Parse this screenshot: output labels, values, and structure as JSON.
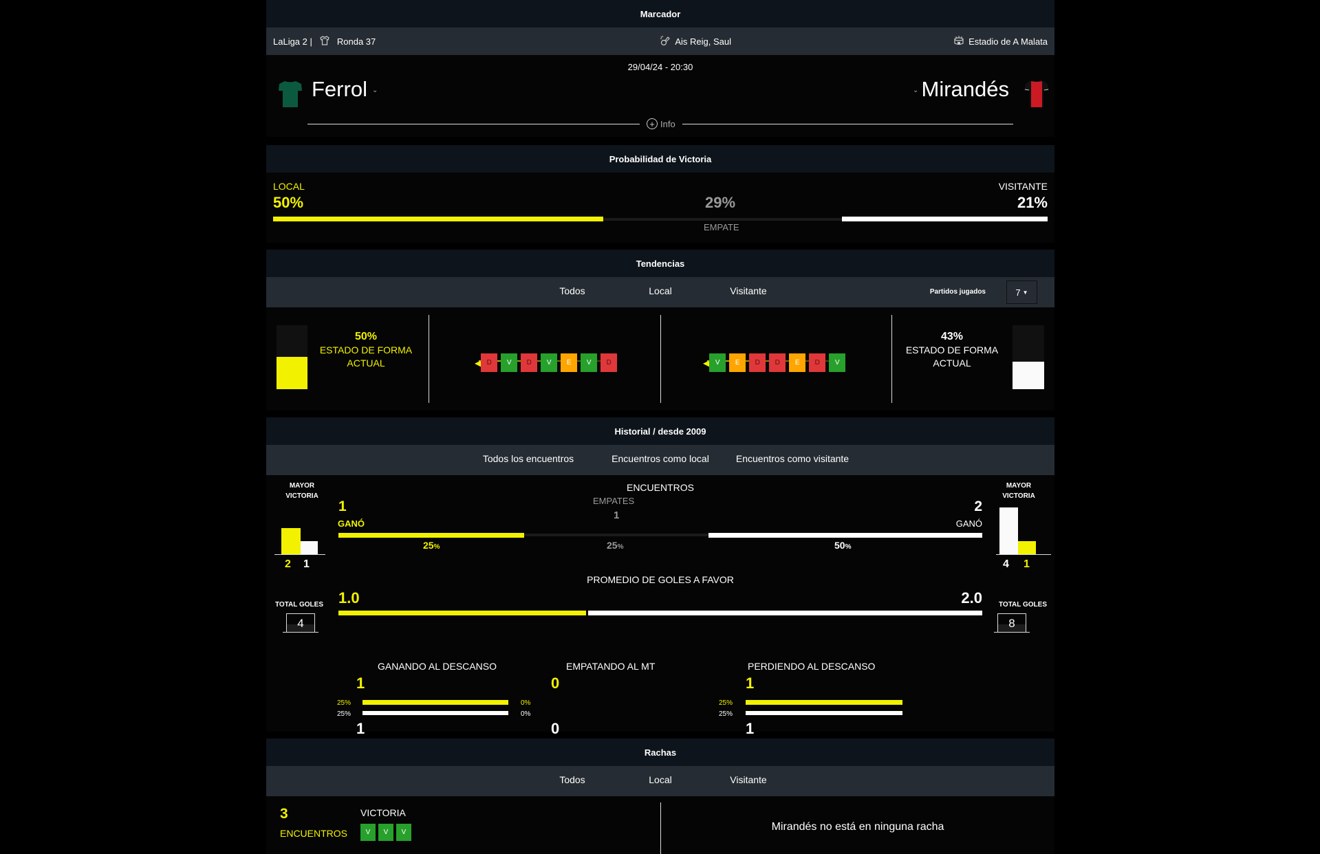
{
  "marcador": {
    "title": "Marcador",
    "competition": "LaLiga 2 |",
    "round": "Ronda 37",
    "referee": "Ais Reig, Saul",
    "stadium": "Estadio de A Malata",
    "datetime": "29/04/24 - 20:30",
    "home_team": "Ferrol",
    "away_team": "Mirandés",
    "info_label": "Info",
    "home_jersey_color": "#0b5a40",
    "away_jersey_color": "#cc1a24"
  },
  "probabilidad": {
    "title": "Probabilidad de Victoria",
    "local_label": "LOCAL",
    "local_pct": "50%",
    "draw_pct": "29%",
    "draw_label": "EMPATE",
    "visitor_label": "VISITANTE",
    "visitor_pct": "21%",
    "values": {
      "local": 50,
      "draw": 29,
      "visitor": 21
    }
  },
  "tendencias": {
    "title": "Tendencias",
    "tabs": [
      "Todos",
      "Local",
      "Visitante"
    ],
    "active_tab": "Todos",
    "played_label": "Partidos jugados",
    "played_value": "7",
    "home": {
      "pct": "50%",
      "label1": "ESTADO DE FORMA",
      "label2": "ACTUAL",
      "form": [
        "D",
        "V",
        "D",
        "V",
        "E",
        "V",
        "D"
      ]
    },
    "away": {
      "pct": "43%",
      "label1": "ESTADO DE FORMA",
      "label2": "ACTUAL",
      "form": [
        "V",
        "E",
        "D",
        "D",
        "E",
        "D",
        "V"
      ]
    }
  },
  "historial": {
    "title": "Historial / desde 2009",
    "tabs": [
      "Todos los encuentros",
      "Encuentros como local",
      "Encuentros como visitante"
    ],
    "active_tab": "Todos los encuentros",
    "mayor_victoria_label1": "MAYOR",
    "mayor_victoria_label2": "VICTORIA",
    "home_biggest": {
      "scored": "2",
      "conceded": "1"
    },
    "away_biggest": {
      "scored": "4",
      "conceded": "1"
    },
    "encuentros_label": "ENCUENTROS",
    "home_wins": "1",
    "home_won_label": "GANÓ",
    "home_pct": "25",
    "draws_label": "EMPATES",
    "draws": "1",
    "draw_pct": "25",
    "away_wins": "2",
    "away_won_label": "GANÓ",
    "away_pct": "50",
    "pct_sign": "%",
    "avg_label": "PROMEDIO DE GOLES A FAVOR",
    "home_avg": "1.0",
    "away_avg": "2.0",
    "total_goals_label": "TOTAL GOLES",
    "home_total_goals": "4",
    "away_total_goals": "8",
    "halftime": [
      {
        "label": "GANANDO AL DESCANSO",
        "home": "1",
        "away": "1",
        "home_pct": "25%",
        "away_pct": "25%"
      },
      {
        "label": "EMPATANDO AL MT",
        "home": "0",
        "away": "0",
        "home_pct": "0%",
        "away_pct": "0%"
      },
      {
        "label": "PERDIENDO AL DESCANSO",
        "home": "1",
        "away": "1",
        "home_pct": "25%",
        "away_pct": "25%"
      }
    ]
  },
  "rachas": {
    "title": "Rachas",
    "tabs": [
      "Todos",
      "Local",
      "Visitante"
    ],
    "active_tab": "Local",
    "home_count": "3",
    "home_count_label": "ENCUENTROS",
    "home_type": "VICTORIA",
    "home_chips": [
      "V",
      "V",
      "V"
    ],
    "away_message": "Mirandés no está en ninguna racha"
  },
  "colors": {
    "yellow": "#f2f200",
    "win": "#27a02c",
    "draw": "#ffa500",
    "loss": "#e0383a",
    "header": "#0e141b",
    "tabbar": "#262c33"
  }
}
